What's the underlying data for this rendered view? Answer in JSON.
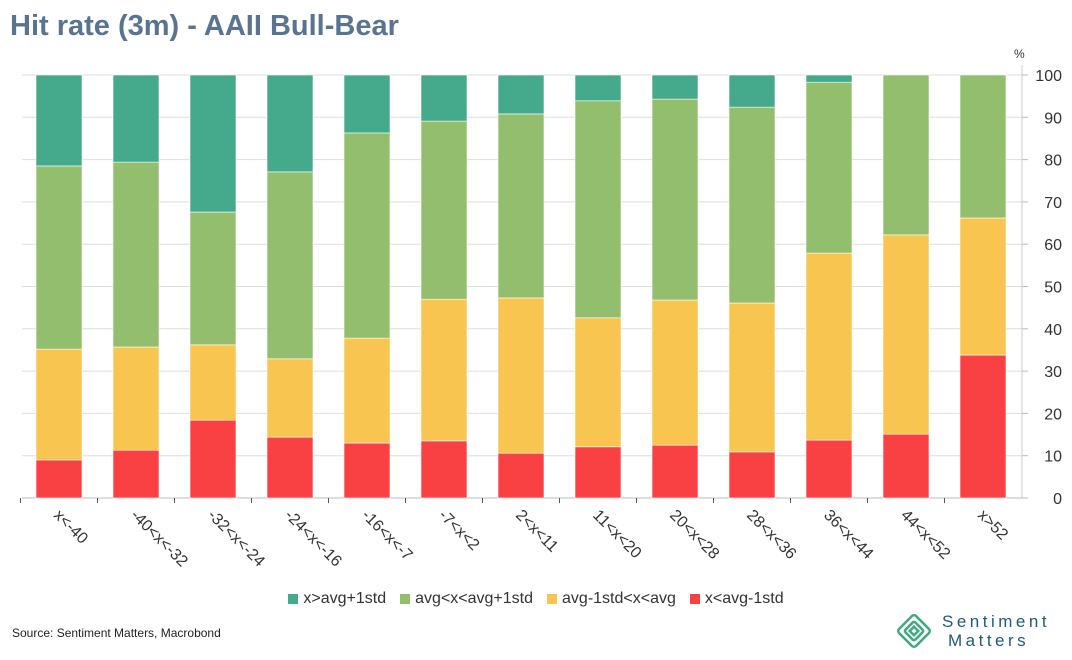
{
  "title": "Hit rate (3m) - AAII Bull-Bear",
  "source": "Source: Sentiment Matters, Macrobond",
  "logo": {
    "line1": "Sentiment",
    "line2": "Matters"
  },
  "chart_data": {
    "type": "bar",
    "stacked": true,
    "title": "Hit rate (3m) - AAII Bull-Bear",
    "ylabel": "%",
    "ylim": [
      0,
      100
    ],
    "yticks": [
      0,
      10,
      20,
      30,
      40,
      50,
      60,
      70,
      80,
      90,
      100
    ],
    "grid": true,
    "legend_position": "bottom",
    "categories": [
      "x<-40",
      "-40<x<-32",
      "-32<x<-24",
      "-24<x<-16",
      "-16<x<-7",
      "-7<x<2",
      "2<x<11",
      "11<x<20",
      "20<x<28",
      "28<x<36",
      "36<x<44",
      "44<x<52",
      "x>52"
    ],
    "series": [
      {
        "name": "x<avg-1std",
        "color": "#f94144",
        "values": [
          9.0,
          11.3,
          18.4,
          14.4,
          13.0,
          13.5,
          10.6,
          12.1,
          12.5,
          10.9,
          13.7,
          15.1,
          33.8
        ]
      },
      {
        "name": "avg-1std<x<avg",
        "color": "#f8c550",
        "values": [
          26.2,
          24.4,
          17.8,
          18.5,
          24.8,
          33.5,
          36.7,
          30.5,
          34.3,
          35.2,
          44.2,
          47.1,
          32.4
        ]
      },
      {
        "name": "avg<x<avg+1std",
        "color": "#92be6d",
        "values": [
          43.3,
          43.7,
          31.4,
          44.2,
          48.5,
          42.1,
          43.5,
          51.3,
          47.5,
          46.3,
          40.4,
          37.8,
          33.8
        ]
      },
      {
        "name": "x>avg+1std",
        "color": "#44aa8b",
        "values": [
          21.5,
          20.6,
          32.4,
          22.9,
          13.7,
          10.9,
          9.2,
          6.1,
          5.7,
          7.6,
          1.7,
          0,
          0
        ]
      }
    ],
    "legend_order": [
      "x>avg+1std",
      "avg<x<avg+1std",
      "avg-1std<x<avg",
      "x<avg-1std"
    ]
  }
}
